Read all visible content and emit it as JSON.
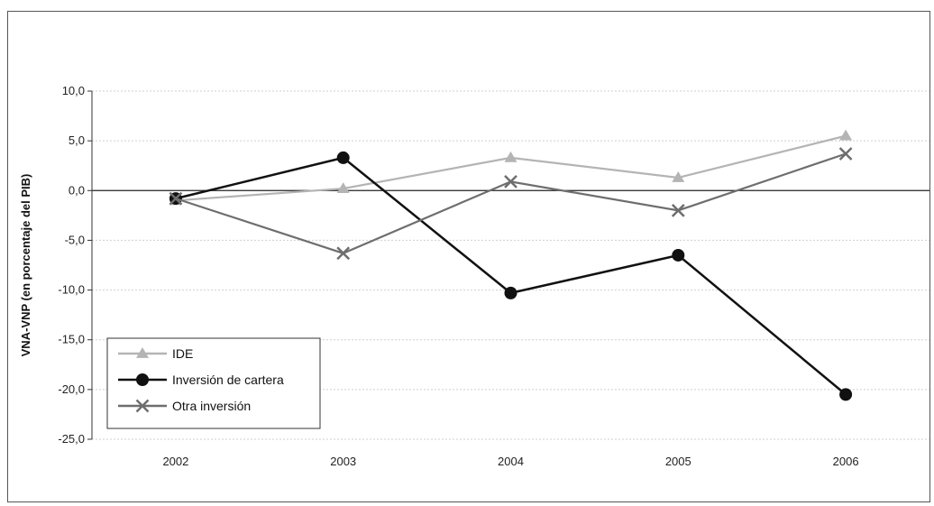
{
  "chart_data": {
    "type": "line",
    "title": "",
    "xlabel": "",
    "ylabel": "VNA-VNP (en porcentaje del PIB)",
    "categories": [
      "2002",
      "2003",
      "2004",
      "2005",
      "2006"
    ],
    "ylim": [
      -25,
      10
    ],
    "yticks": [
      10,
      5,
      0,
      -5,
      -10,
      -15,
      -20,
      -25
    ],
    "ytick_labels": [
      "10,0",
      "5,0",
      "0,0",
      "-5,0",
      "-10,0",
      "-15,0",
      "-20,0",
      "-25,0"
    ],
    "grid": true,
    "legend_position": "bottom-left",
    "series": [
      {
        "name": "IDE",
        "values": [
          -1.0,
          0.2,
          3.3,
          1.3,
          5.5
        ],
        "color": "#b4b4b4",
        "marker": "triangle"
      },
      {
        "name": "Inversión de cartera",
        "values": [
          -0.8,
          3.3,
          -10.3,
          -6.5,
          -20.5
        ],
        "color": "#111111",
        "marker": "circle"
      },
      {
        "name": "Otra inversión",
        "values": [
          -0.8,
          -6.3,
          0.9,
          -2.0,
          3.7
        ],
        "color": "#6e6e6e",
        "marker": "x"
      }
    ]
  }
}
